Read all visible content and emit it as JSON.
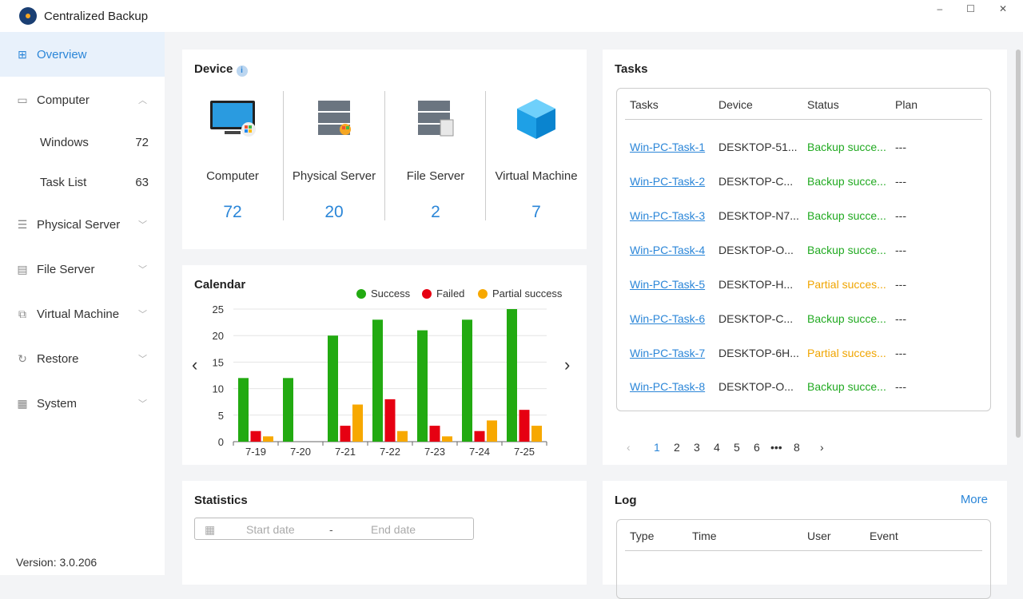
{
  "app": {
    "title": "Centralized Backup",
    "version": "Version: 3.0.206"
  },
  "window": {
    "minimize": "–",
    "maximize": "☐",
    "close": "✕"
  },
  "sidebar": {
    "items": [
      {
        "label": "Overview",
        "icon": "grid-icon",
        "active": true
      },
      {
        "label": "Computer",
        "icon": "monitor-icon",
        "expanded": true,
        "children": [
          {
            "label": "Windows",
            "count": "72"
          },
          {
            "label": "Task List",
            "count": "63"
          }
        ]
      },
      {
        "label": "Physical Server",
        "icon": "server-icon"
      },
      {
        "label": "File Server",
        "icon": "file-server-icon"
      },
      {
        "label": "Virtual Machine",
        "icon": "virtual-machine-icon"
      },
      {
        "label": "Restore",
        "icon": "restore-icon"
      },
      {
        "label": "System",
        "icon": "system-icon"
      }
    ]
  },
  "device": {
    "title": "Device",
    "items": [
      {
        "label": "Computer",
        "count": "72"
      },
      {
        "label": "Physical Server",
        "count": "20"
      },
      {
        "label": "File Server",
        "count": "2"
      },
      {
        "label": "Virtual Machine",
        "count": "7"
      }
    ]
  },
  "calendar": {
    "title": "Calendar"
  },
  "chart_data": {
    "type": "bar",
    "categories": [
      "7-19",
      "7-20",
      "7-21",
      "7-22",
      "7-23",
      "7-24",
      "7-25"
    ],
    "series": [
      {
        "name": "Success",
        "color": "#22aa11",
        "values": [
          12,
          12,
          20,
          23,
          21,
          23,
          25
        ]
      },
      {
        "name": "Failed",
        "color": "#e60012",
        "values": [
          2,
          0,
          3,
          8,
          3,
          2,
          6
        ]
      },
      {
        "name": "Partial success",
        "color": "#f7a800",
        "values": [
          1,
          0,
          7,
          2,
          1,
          4,
          3
        ]
      }
    ],
    "yticks": [
      0,
      5,
      10,
      15,
      20,
      25
    ],
    "ylim": [
      0,
      25
    ],
    "grid": true,
    "legend": "top-right"
  },
  "statistics": {
    "title": "Statistics",
    "start_placeholder": "Start date",
    "separator": "-",
    "end_placeholder": "End date"
  },
  "tasks": {
    "title": "Tasks",
    "columns": [
      "Tasks",
      "Device",
      "Status",
      "Plan"
    ],
    "rows": [
      [
        "Win-PC-Task-1",
        "DESKTOP-51...",
        "Backup succe...",
        "---"
      ],
      [
        "Win-PC-Task-2",
        "DESKTOP-C...",
        "Backup succe...",
        "---"
      ],
      [
        "Win-PC-Task-3",
        "DESKTOP-N7...",
        "Backup succe...",
        "---"
      ],
      [
        "Win-PC-Task-4",
        "DESKTOP-O...",
        "Backup succe...",
        "---"
      ],
      [
        "Win-PC-Task-5",
        "DESKTOP-H...",
        "Partial succes...",
        "---"
      ],
      [
        "Win-PC-Task-6",
        "DESKTOP-C...",
        "Backup succe...",
        "---"
      ],
      [
        "Win-PC-Task-7",
        "DESKTOP-6H...",
        "Partial succes...",
        "---"
      ],
      [
        "Win-PC-Task-8",
        "DESKTOP-O...",
        "Backup succe...",
        "---"
      ]
    ],
    "pagination": [
      "‹",
      "1",
      "2",
      "3",
      "4",
      "5",
      "6",
      "•••",
      "8",
      "›"
    ],
    "current_page": "1"
  },
  "log": {
    "title": "Log",
    "more": "More",
    "columns": [
      "Type",
      "Time",
      "User",
      "Event"
    ]
  }
}
